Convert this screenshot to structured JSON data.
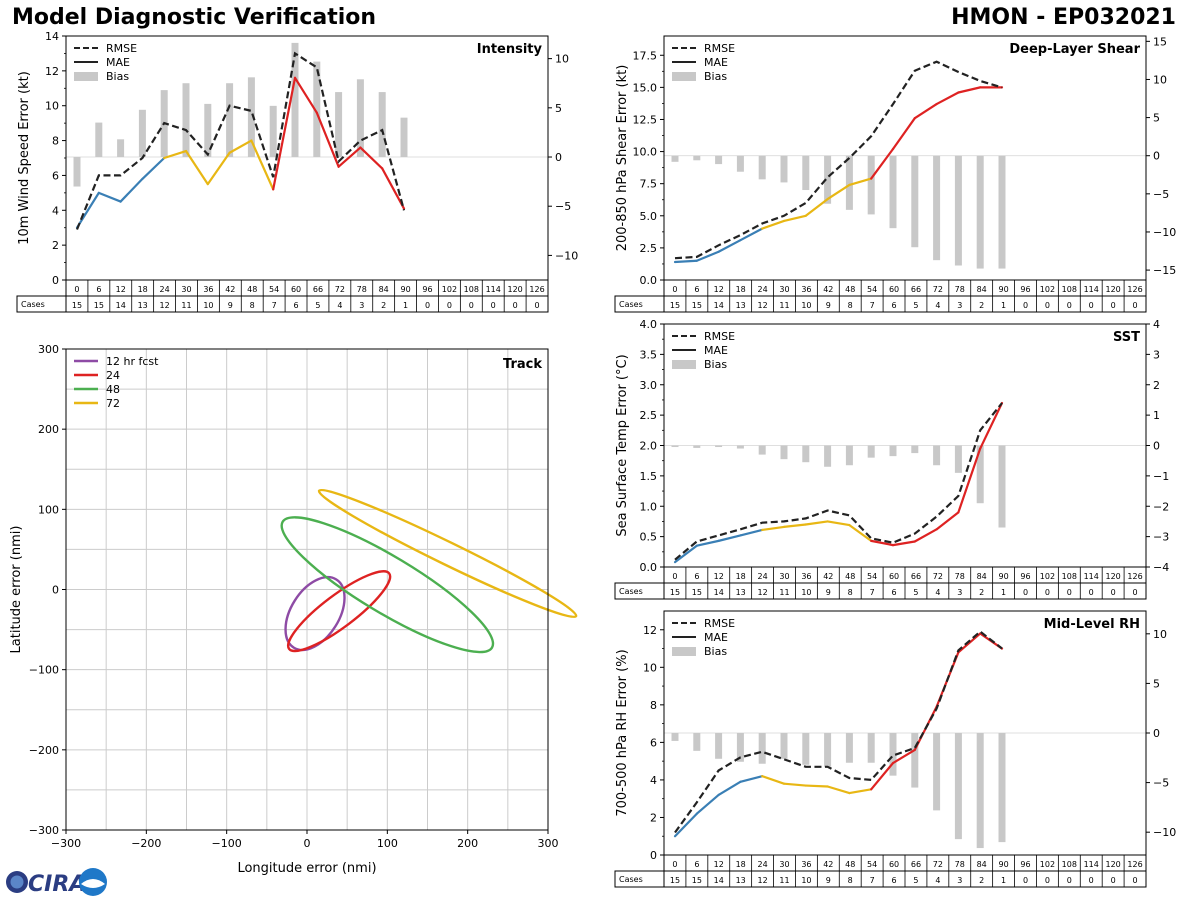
{
  "header": {
    "title": "Model Diagnostic Verification",
    "storm": "HMON - EP032021"
  },
  "logo": {
    "label": "CIRA"
  },
  "colors": {
    "rmse": "#222222",
    "early": "#3a7fb5",
    "mid": "#e8b714",
    "late": "#de2222",
    "bias": "#c8c8c8",
    "c12": "#8e4ba5",
    "c24": "#de2222",
    "c48": "#4caf50",
    "c72": "#e8b714",
    "grid": "#cccccc"
  },
  "verification_table": {
    "lead_times": [
      "0",
      "6",
      "12",
      "18",
      "24",
      "30",
      "36",
      "42",
      "48",
      "54",
      "60",
      "66",
      "72",
      "78",
      "84",
      "90",
      "96",
      "102",
      "108",
      "114",
      "120",
      "126"
    ],
    "cases_label": "Cases",
    "cases": [
      "15",
      "15",
      "14",
      "13",
      "12",
      "11",
      "10",
      "9",
      "8",
      "7",
      "6",
      "5",
      "4",
      "3",
      "2",
      "1",
      "0",
      "0",
      "0",
      "0",
      "0",
      "0"
    ]
  },
  "chart_data": [
    {
      "id": "intensity",
      "type": "line+bar",
      "title": "Intensity",
      "ylabel": "10m Wind Speed Error (kt)",
      "ylim": [
        0,
        14
      ],
      "yticks": [
        0,
        2,
        4,
        6,
        8,
        10,
        12,
        14
      ],
      "y2lim": [
        -12.5,
        12.3
      ],
      "y2ticks": [
        -10,
        -5,
        0,
        5,
        10
      ],
      "legend": [
        "RMSE",
        "MAE",
        "Bias"
      ],
      "x": [
        0,
        6,
        12,
        18,
        24,
        30,
        36,
        42,
        48,
        54,
        60,
        66,
        72,
        78,
        84,
        90
      ],
      "rmse": [
        2.9,
        6.0,
        6.0,
        7.0,
        9.0,
        8.6,
        7.2,
        10.0,
        9.7,
        5.9,
        13.0,
        12.2,
        6.8,
        8.0,
        8.6,
        4.0
      ],
      "mae": [
        3.0,
        5.0,
        4.5,
        5.8,
        7.0,
        7.4,
        5.5,
        7.3,
        8.0,
        5.2,
        11.6,
        9.6,
        6.5,
        7.6,
        6.4,
        4.1
      ],
      "bias": [
        -3.0,
        3.5,
        1.8,
        4.8,
        6.8,
        7.5,
        5.4,
        7.5,
        8.1,
        5.2,
        11.6,
        9.7,
        6.6,
        7.9,
        6.6,
        4.0
      ]
    },
    {
      "id": "shear",
      "type": "line+bar",
      "title": "Deep-Layer Shear",
      "ylabel": "200-850 hPa Shear Error (kt)",
      "ylim": [
        0,
        19
      ],
      "yticks": [
        0.0,
        2.5,
        5.0,
        7.5,
        10.0,
        12.5,
        15.0,
        17.5
      ],
      "y2lim": [
        -16.3,
        15.7
      ],
      "y2ticks": [
        -15,
        -10,
        -5,
        0,
        5,
        10,
        15
      ],
      "legend": [
        "RMSE",
        "MAE",
        "Bias"
      ],
      "x": [
        0,
        6,
        12,
        18,
        24,
        30,
        36,
        42,
        48,
        54,
        60,
        66,
        72,
        78,
        84,
        90
      ],
      "rmse": [
        1.7,
        1.8,
        2.7,
        3.5,
        4.4,
        5.0,
        6.0,
        8.0,
        9.5,
        11.2,
        13.7,
        16.3,
        17.0,
        16.2,
        15.5,
        15.0
      ],
      "mae": [
        1.4,
        1.5,
        2.2,
        3.1,
        4.0,
        4.6,
        5.0,
        6.3,
        7.4,
        7.9,
        10.2,
        12.6,
        13.7,
        14.6,
        15.0,
        15.0
      ],
      "bias": [
        -0.8,
        -0.6,
        -1.1,
        -2.1,
        -3.1,
        -3.5,
        -4.5,
        -6.3,
        -7.1,
        -7.7,
        -9.5,
        -12.0,
        -13.7,
        -14.4,
        -14.8,
        -14.8
      ]
    },
    {
      "id": "sst",
      "type": "line+bar",
      "title": "SST",
      "ylabel": "Sea Surface Temp Error (°C)",
      "ylim": [
        0,
        4
      ],
      "yticks": [
        0.0,
        0.5,
        1.0,
        1.5,
        2.0,
        2.5,
        3.0,
        3.5,
        4.0
      ],
      "y2lim": [
        -4,
        4
      ],
      "y2ticks": [
        -4,
        -3,
        -2,
        -1,
        0,
        1,
        2,
        3,
        4
      ],
      "legend": [
        "RMSE",
        "MAE",
        "Bias"
      ],
      "x": [
        0,
        6,
        12,
        18,
        24,
        30,
        36,
        42,
        48,
        54,
        60,
        66,
        72,
        78,
        84,
        90
      ],
      "rmse": [
        0.12,
        0.42,
        0.52,
        0.62,
        0.73,
        0.75,
        0.8,
        0.93,
        0.85,
        0.47,
        0.4,
        0.55,
        0.83,
        1.17,
        2.25,
        2.7
      ],
      "mae": [
        0.08,
        0.35,
        0.43,
        0.52,
        0.61,
        0.66,
        0.7,
        0.75,
        0.69,
        0.43,
        0.36,
        0.42,
        0.62,
        0.9,
        1.95,
        2.7
      ],
      "bias": [
        -0.05,
        -0.08,
        -0.05,
        -0.1,
        -0.3,
        -0.45,
        -0.55,
        -0.7,
        -0.65,
        -0.4,
        -0.35,
        -0.25,
        -0.65,
        -0.9,
        -1.9,
        -2.7
      ]
    },
    {
      "id": "midrh",
      "type": "line+bar",
      "title": "Mid-Level RH",
      "ylabel": "700-500 hPa RH Error (%)",
      "ylim": [
        0,
        13
      ],
      "yticks": [
        0,
        2,
        4,
        6,
        8,
        10,
        12
      ],
      "y2lim": [
        -12.3,
        12.3
      ],
      "y2ticks": [
        -10,
        -5,
        0,
        5,
        10
      ],
      "legend": [
        "RMSE",
        "MAE",
        "Bias"
      ],
      "x": [
        0,
        6,
        12,
        18,
        24,
        30,
        36,
        42,
        48,
        54,
        60,
        66,
        72,
        78,
        84,
        90
      ],
      "rmse": [
        1.2,
        2.8,
        4.5,
        5.2,
        5.5,
        5.1,
        4.7,
        4.7,
        4.1,
        4.0,
        5.3,
        5.7,
        7.8,
        10.9,
        11.9,
        11.0
      ],
      "mae": [
        1.0,
        2.2,
        3.2,
        3.9,
        4.2,
        3.8,
        3.7,
        3.65,
        3.3,
        3.5,
        4.9,
        5.6,
        7.9,
        10.8,
        11.8,
        11.0
      ],
      "bias": [
        -0.8,
        -1.8,
        -2.6,
        -2.9,
        -3.1,
        -2.6,
        -3.2,
        -3.4,
        -3.0,
        -3.0,
        -4.3,
        -5.5,
        -7.8,
        -10.7,
        -11.6,
        -11.0
      ]
    },
    {
      "id": "track",
      "type": "ellipse",
      "title": "Track",
      "xlabel": "Longitude error (nmi)",
      "ylabel": "Latitude error (nmi)",
      "xlim": [
        -300,
        300
      ],
      "ylim": [
        -300,
        300
      ],
      "xticks": [
        -300,
        -200,
        -100,
        0,
        100,
        200,
        300
      ],
      "yticks": [
        -300,
        -200,
        -100,
        0,
        100,
        200,
        300
      ],
      "legend": [
        "12 hr fcst",
        "24",
        "48",
        "72"
      ],
      "ellipses": [
        {
          "name": "12 hr fcst",
          "cx": 10,
          "cy": -30,
          "rx": 50,
          "ry": 30,
          "angle_deg": 58
        },
        {
          "name": "24",
          "cx": 40,
          "cy": -27,
          "rx": 78,
          "ry": 20,
          "angle_deg": 37
        },
        {
          "name": "48",
          "cx": 100,
          "cy": 6,
          "rx": 152,
          "ry": 35,
          "angle_deg": -31
        },
        {
          "name": "72",
          "cx": 175,
          "cy": 45,
          "rx": 178,
          "ry": 14,
          "angle_deg": -26
        }
      ]
    }
  ]
}
